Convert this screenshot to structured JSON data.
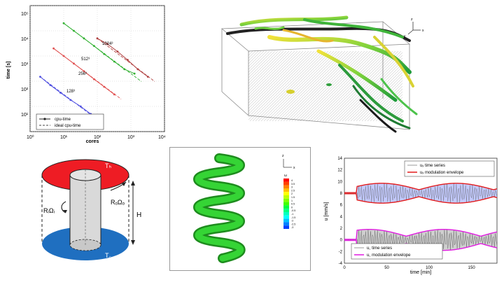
{
  "scaling_chart": {
    "ylabel": "time [s]",
    "xlabel": "cores",
    "y_ticks": [
      "10⁵",
      "10⁴",
      "10³",
      "10²",
      "10¹"
    ],
    "x_ticks": [
      "10⁰",
      "10¹",
      "10²",
      "10³",
      "10⁴"
    ],
    "series_labels": [
      "1024³",
      "512³",
      "256³",
      "128³"
    ],
    "legend": {
      "cpu": "cpu-time",
      "ideal": "ideal cpu-time"
    },
    "colors": {
      "1024": "#b04040",
      "512": "#30b030",
      "256": "#e05050",
      "128": "#5050e0"
    }
  },
  "chart_data": {
    "type": "line",
    "xlabel": "cores",
    "ylabel": "time [s]",
    "x_scale": "log",
    "y_scale": "log",
    "xlim": [
      1,
      10000
    ],
    "ylim": [
      1,
      100000
    ],
    "series": [
      {
        "name": "1024³",
        "x": [
          100,
          200,
          400,
          800,
          1600,
          3200
        ],
        "y": [
          5000,
          3000,
          1500,
          700,
          300,
          150
        ]
      },
      {
        "name": "512³",
        "x": [
          10,
          20,
          40,
          80,
          160,
          320,
          640,
          1280
        ],
        "y": [
          20000,
          10000,
          5000,
          2500,
          1200,
          600,
          300,
          200
        ]
      },
      {
        "name": "256³",
        "x": [
          5,
          10,
          20,
          40,
          80,
          160,
          320
        ],
        "y": [
          2000,
          1000,
          500,
          250,
          120,
          60,
          30
        ]
      },
      {
        "name": "128³",
        "x": [
          2,
          4,
          8,
          16,
          32,
          64
        ],
        "y": [
          150,
          70,
          35,
          18,
          10,
          5
        ]
      }
    ]
  },
  "box3d": {
    "axis_labels": {
      "y": "y",
      "z": "z",
      "x": "x"
    }
  },
  "cylinder": {
    "labels": {
      "top_temp": "Tₕ",
      "bottom_temp": "T꜀",
      "inner": "RᵢΩᵢ",
      "outer": "RₒΩₒ",
      "height": "H"
    },
    "colors": {
      "top": "#ee1c24",
      "bottom": "#1f6fc0"
    }
  },
  "helix": {
    "axis_labels": {
      "z": "z",
      "x": "x"
    },
    "legend_title": "ω",
    "legend_ticks": [
      "4",
      "3.5",
      "3",
      "2.5",
      "2",
      "1.5",
      "1",
      "0.5",
      "0",
      "-0.5",
      "-1",
      "-1.5",
      "-2",
      "-2.5",
      "-3"
    ]
  },
  "timeseries": {
    "xlabel": "time [min]",
    "ylabel": "u [mm/s]",
    "y_ticks": [
      "14",
      "12",
      "10",
      "8",
      "6",
      "4",
      "2",
      "0",
      "-2",
      "-4"
    ],
    "x_ticks": [
      "0",
      "50",
      "100",
      "150"
    ],
    "legend_top": {
      "series": "uₓ time series",
      "envelope": "uₓ modulation envelope"
    },
    "legend_bottom": {
      "series": "u꜀ time series",
      "envelope": "u꜀ modulation envelope"
    }
  }
}
